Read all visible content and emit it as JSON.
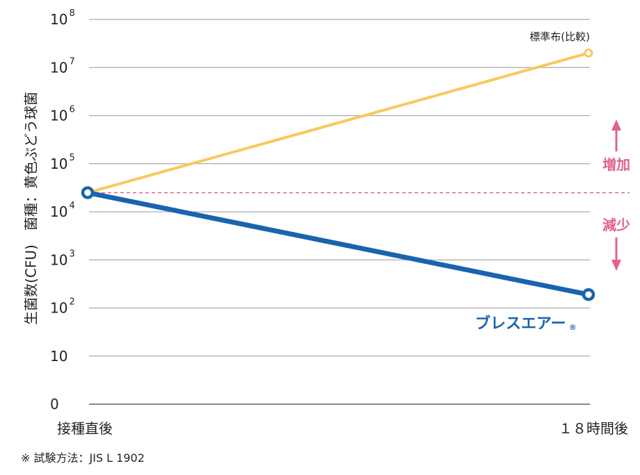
{
  "chart_data": {
    "type": "line",
    "ylabel": "生菌数(CFU)　菌種：黄色ぶどう球菌",
    "yscale": "log",
    "ylim": [
      1,
      100000000
    ],
    "y_ticks": [
      {
        "value": 1,
        "base": "0",
        "exp": ""
      },
      {
        "value": 10,
        "base": "10",
        "exp": ""
      },
      {
        "value": 100,
        "base": "10",
        "exp": "2"
      },
      {
        "value": 1000,
        "base": "10",
        "exp": "3"
      },
      {
        "value": 10000,
        "base": "10",
        "exp": "4"
      },
      {
        "value": 100000,
        "base": "10",
        "exp": "5"
      },
      {
        "value": 1000000,
        "base": "10",
        "exp": "6"
      },
      {
        "value": 10000000,
        "base": "10",
        "exp": "7"
      },
      {
        "value": 100000000,
        "base": "10",
        "exp": "8"
      }
    ],
    "categories": [
      "接種直後",
      "１８時間後"
    ],
    "series": [
      {
        "name": "標準布(比較)",
        "color": "#f7c95c",
        "values": [
          25000,
          20000000
        ]
      },
      {
        "name": "ブレスエアー",
        "color": "#1a64ad",
        "values": [
          25000,
          190
        ]
      }
    ],
    "reference_line": {
      "value": 25000,
      "color": "#e0618a"
    },
    "annotations": {
      "increase": "増加",
      "decrease": "減少"
    },
    "registered_mark": "®",
    "grid": true
  },
  "footnote": "※ 試験方法：JIS L 1902"
}
